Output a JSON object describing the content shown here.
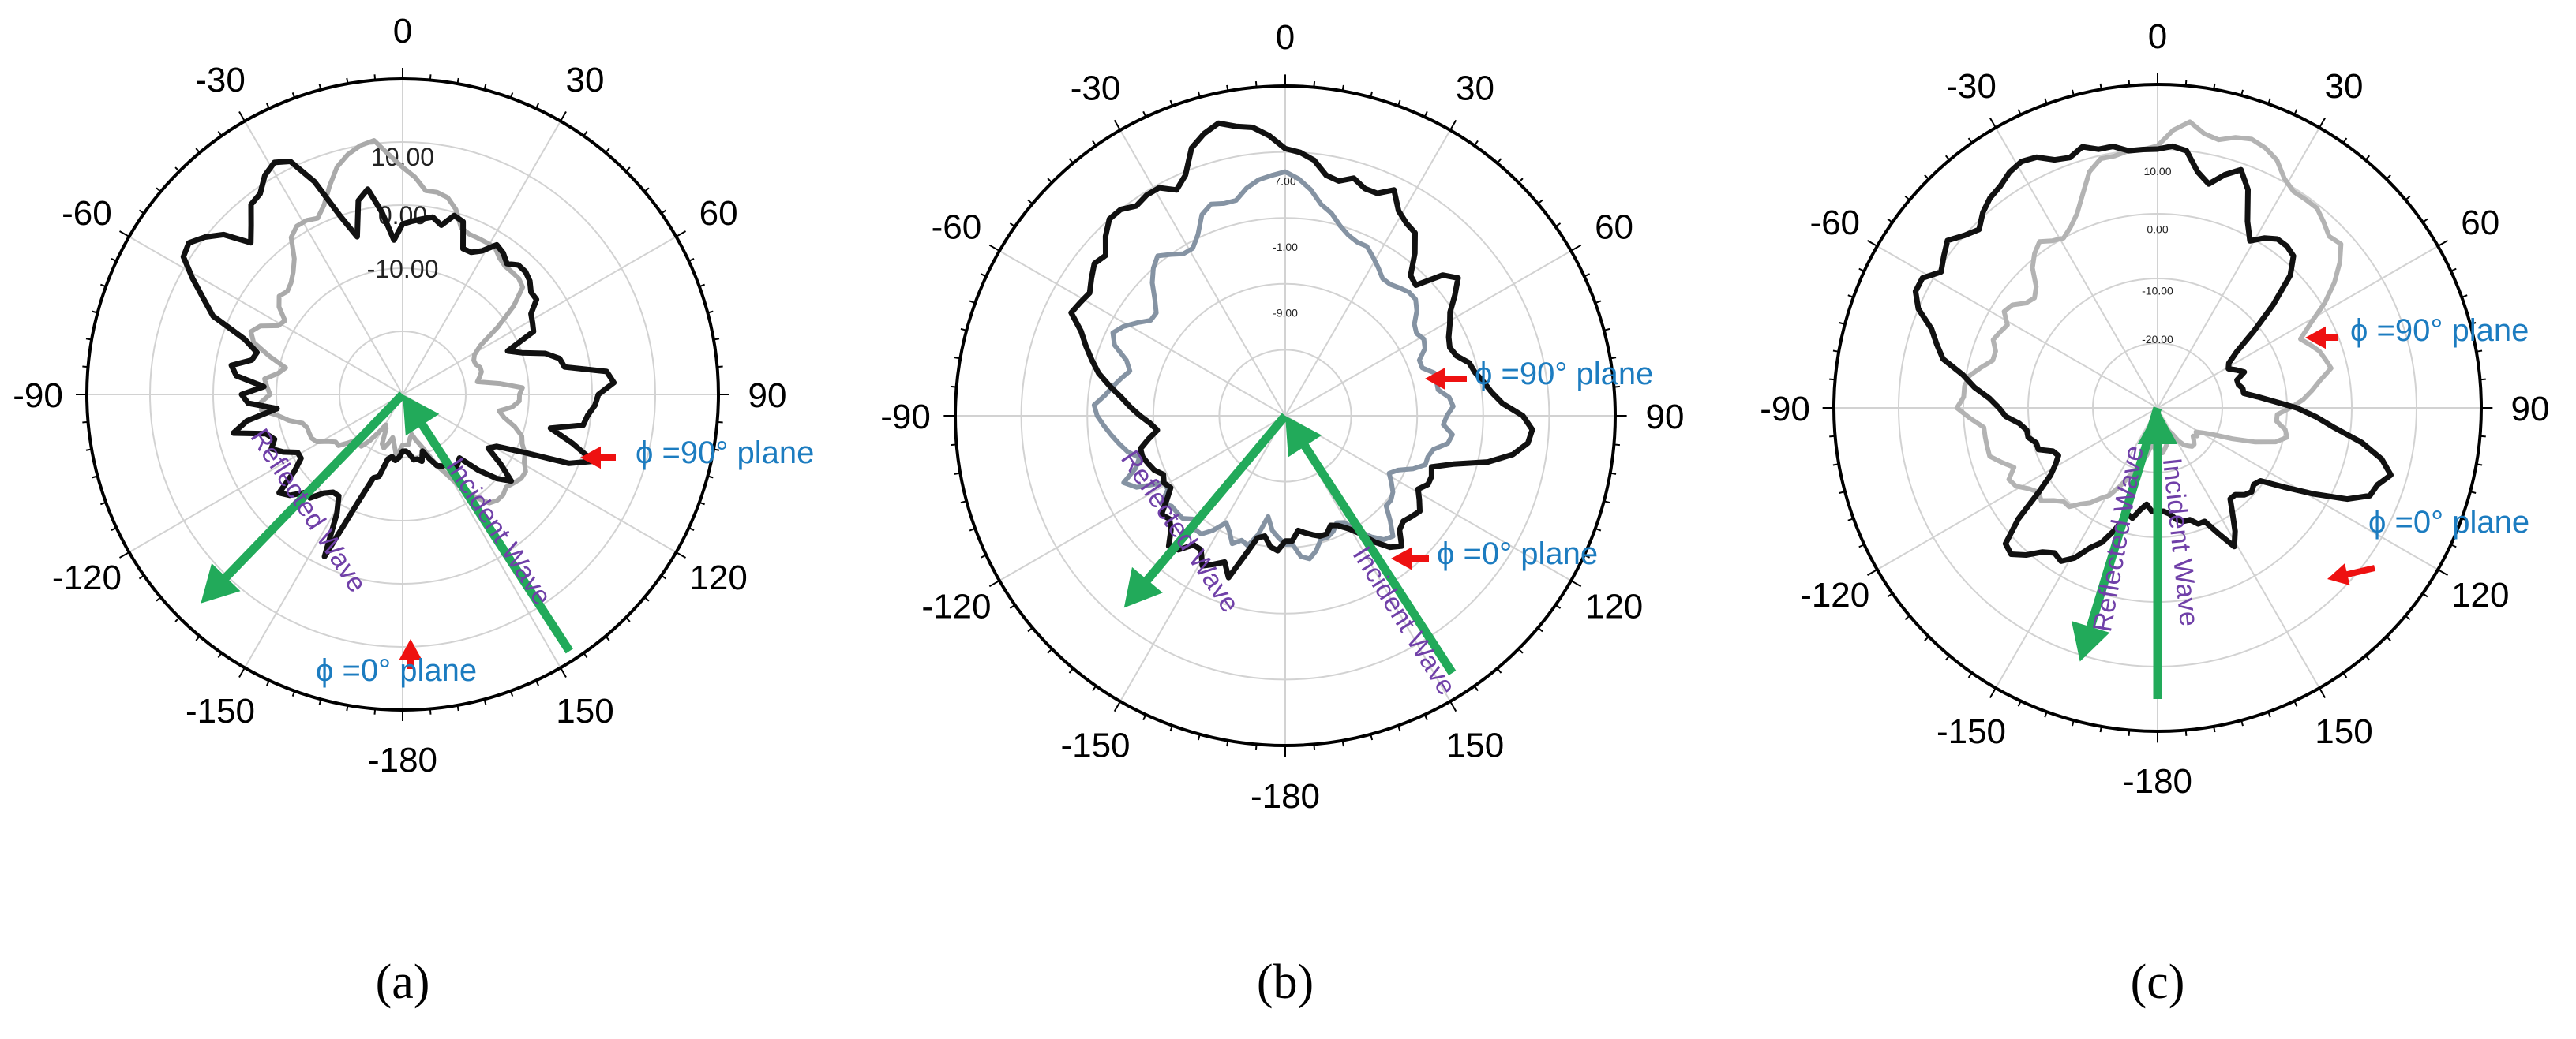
{
  "colors": {
    "phi90": "#111111",
    "phi0_a": "#aaaaaa",
    "phi0_b": "#8593a3",
    "phi0_c": "#b3b3b3",
    "arrow": "#22aa5a",
    "pointer": "#ee1111",
    "annotation": "#1c7cc0",
    "wave_label": "#7040a8",
    "grid": "#d2d2d2"
  },
  "chart_data": [
    {
      "type": "polar-line",
      "panel": "a",
      "caption": "(a)",
      "angle_ticks": [
        "0",
        "30",
        "60",
        "90",
        "120",
        "150",
        "-180",
        "-150",
        "-120",
        "-90",
        "-60",
        "-30"
      ],
      "radial_tick_labels": [
        "10.00",
        "0.00",
        "-10.00"
      ],
      "series": [
        {
          "label": "ϕ =90° plane",
          "style": "black",
          "r": [
            0.18,
            0.2,
            0.21,
            0.2,
            0.21,
            0.27,
            0.28,
            0.37,
            0.57,
            0.43,
            0.38,
            0.38,
            0.4,
            0.44,
            0.44,
            0.48,
            0.5,
            0.42,
            0.38,
            0.38,
            0.42,
            0.45,
            0.43,
            0.45,
            0.55,
            0.5,
            0.4,
            0.49,
            0.51,
            0.44,
            0.53,
            0.55,
            0.49,
            0.48,
            0.53,
            0.65,
            0.7,
            0.76,
            0.82,
            0.83,
            0.8,
            0.76,
            0.68,
            0.72,
            0.77,
            0.78,
            0.82,
            0.84,
            0.82,
            0.73,
            0.6,
            0.52,
            0.63,
            0.66,
            0.58,
            0.49,
            0.54,
            0.55,
            0.56,
            0.57,
            0.55,
            0.59,
            0.58,
            0.5,
            0.5,
            0.52,
            0.56,
            0.55,
            0.53,
            0.55,
            0.55,
            0.54,
            0.52,
            0.52,
            0.48,
            0.47,
            0.46,
            0.36,
            0.4,
            0.47,
            0.51,
            0.52,
            0.65,
            0.67,
            0.62,
            0.61,
            0.59,
            0.58,
            0.48,
            0.56,
            0.64,
            0.57,
            0.42,
            0.34,
            0.32,
            0.38,
            0.44,
            0.4,
            0.34,
            0.27,
            0.28,
            0.29,
            0.26,
            0.26,
            0.25,
            0.22,
            0.19,
            0.22,
            0.21,
            0.21,
            0.19,
            0.18
          ]
        },
        {
          "label": "ϕ =0° plane",
          "style": "gray",
          "r": [
            0.16,
            0.18,
            0.19,
            0.16,
            0.14,
            0.16,
            0.18,
            0.17,
            0.12,
            0.11,
            0.14,
            0.18,
            0.21,
            0.21,
            0.2,
            0.23,
            0.26,
            0.26,
            0.28,
            0.31,
            0.32,
            0.32,
            0.32,
            0.33,
            0.37,
            0.4,
            0.45,
            0.45,
            0.42,
            0.43,
            0.44,
            0.4,
            0.38,
            0.44,
            0.5,
            0.52,
            0.5,
            0.45,
            0.44,
            0.48,
            0.5,
            0.49,
            0.5,
            0.52,
            0.55,
            0.61,
            0.63,
            0.63,
            0.62,
            0.65,
            0.7,
            0.75,
            0.78,
            0.8,
            0.81,
            0.76,
            0.72,
            0.69,
            0.65,
            0.65,
            0.64,
            0.61,
            0.56,
            0.55,
            0.55,
            0.55,
            0.55,
            0.53,
            0.52,
            0.52,
            0.52,
            0.51,
            0.45,
            0.37,
            0.29,
            0.26,
            0.25,
            0.25,
            0.26,
            0.26,
            0.25,
            0.24,
            0.31,
            0.38,
            0.37,
            0.37,
            0.35,
            0.31,
            0.33,
            0.37,
            0.4,
            0.41,
            0.43,
            0.44,
            0.46,
            0.46,
            0.45,
            0.44,
            0.45,
            0.45,
            0.44,
            0.4,
            0.35,
            0.29,
            0.25,
            0.2,
            0.17,
            0.15,
            0.13,
            0.14,
            0.16,
            0.16
          ]
        }
      ],
      "annotations": [
        {
          "text": "ϕ =90° plane",
          "points_to": "φ90 trace near 100°"
        },
        {
          "text": "ϕ =0° plane",
          "points_to": "φ0 trace near -178°"
        }
      ],
      "wave_arrows": [
        {
          "label": "Incident Wave",
          "from_angle": 147,
          "to": "center"
        },
        {
          "label": "Reflected Wave",
          "from": "center",
          "to_angle": -136
        }
      ]
    },
    {
      "type": "polar-line",
      "panel": "b",
      "caption": "(b)",
      "angle_ticks": [
        "0",
        "30",
        "60",
        "90",
        "120",
        "150",
        "-180",
        "-150",
        "-120",
        "-90",
        "-60",
        "-30"
      ],
      "radial_tick_labels": [
        "7.00",
        "-1.00",
        "-9.00"
      ],
      "series": [
        {
          "label": "ϕ =90° plane",
          "style": "black",
          "r": [
            0.38,
            0.41,
            0.4,
            0.37,
            0.38,
            0.44,
            0.52,
            0.48,
            0.5,
            0.52,
            0.48,
            0.48,
            0.52,
            0.53,
            0.49,
            0.47,
            0.48,
            0.44,
            0.41,
            0.42,
            0.41,
            0.43,
            0.44,
            0.45,
            0.45,
            0.42,
            0.39,
            0.41,
            0.44,
            0.47,
            0.5,
            0.54,
            0.58,
            0.61,
            0.64,
            0.67,
            0.72,
            0.71,
            0.7,
            0.72,
            0.74,
            0.73,
            0.77,
            0.8,
            0.8,
            0.78,
            0.79,
            0.79,
            0.76,
            0.79,
            0.86,
            0.89,
            0.91,
            0.89,
            0.88,
            0.85,
            0.81,
            0.8,
            0.78,
            0.74,
            0.73,
            0.75,
            0.73,
            0.73,
            0.76,
            0.71,
            0.69,
            0.68,
            0.63,
            0.57,
            0.56,
            0.64,
            0.67,
            0.63,
            0.59,
            0.57,
            0.55,
            0.54,
            0.55,
            0.58,
            0.59,
            0.61,
            0.63,
            0.66,
            0.72,
            0.75,
            0.74,
            0.7,
            0.63,
            0.53,
            0.47,
            0.48,
            0.48,
            0.46,
            0.48,
            0.5,
            0.49,
            0.48,
            0.49,
            0.53,
            0.51,
            0.47,
            0.42,
            0.39,
            0.37,
            0.36,
            0.38,
            0.38,
            0.37,
            0.36,
            0.35,
            0.38
          ]
        },
        {
          "label": "ϕ =0° plane",
          "style": "bluegray",
          "r": [
            0.39,
            0.37,
            0.35,
            0.31,
            0.37,
            0.41,
            0.4,
            0.42,
            0.39,
            0.37,
            0.41,
            0.44,
            0.44,
            0.42,
            0.44,
            0.44,
            0.44,
            0.46,
            0.42,
            0.42,
            0.5,
            0.53,
            0.48,
            0.46,
            0.49,
            0.51,
            0.53,
            0.55,
            0.57,
            0.58,
            0.55,
            0.53,
            0.51,
            0.49,
            0.51,
            0.56,
            0.58,
            0.56,
            0.53,
            0.5,
            0.5,
            0.53,
            0.57,
            0.6,
            0.62,
            0.6,
            0.58,
            0.58,
            0.61,
            0.66,
            0.68,
            0.67,
            0.67,
            0.7,
            0.72,
            0.73,
            0.74,
            0.72,
            0.69,
            0.65,
            0.63,
            0.6,
            0.58,
            0.57,
            0.57,
            0.55,
            0.53,
            0.51,
            0.51,
            0.52,
            0.53,
            0.53,
            0.51,
            0.48,
            0.47,
            0.48,
            0.47,
            0.44,
            0.44,
            0.47,
            0.47,
            0.47,
            0.5,
            0.51,
            0.49,
            0.48,
            0.51,
            0.5,
            0.46,
            0.45,
            0.45,
            0.42,
            0.38,
            0.36,
            0.38,
            0.4,
            0.41,
            0.41,
            0.45,
            0.49,
            0.48,
            0.45,
            0.41,
            0.37,
            0.36,
            0.38,
            0.39,
            0.39,
            0.42,
            0.44,
            0.43,
            0.39
          ]
        }
      ],
      "annotations": [
        {
          "text": "ϕ =90° plane",
          "points_to": "φ90 trace near 80°"
        },
        {
          "text": "ϕ =0° plane",
          "points_to": "φ0 trace near 118°"
        }
      ],
      "wave_arrows": [
        {
          "label": "Incident Wave",
          "from_angle": 147,
          "to": "center"
        },
        {
          "label": "Reflected Wave",
          "from": "center",
          "to_angle": -140
        }
      ]
    },
    {
      "type": "polar-line",
      "panel": "c",
      "caption": "(c)",
      "angle_ticks": [
        "0",
        "30",
        "60",
        "90",
        "120",
        "150",
        "-180",
        "-150",
        "-120",
        "-90",
        "-60",
        "-30"
      ],
      "radial_tick_labels": [
        "10.00",
        "0.00",
        "-10.00",
        "-20.00"
      ],
      "series": [
        {
          "label": "ϕ =90° plane",
          "style": "black",
          "r": [
            0.32,
            0.32,
            0.3,
            0.32,
            0.35,
            0.34,
            0.4,
            0.45,
            0.48,
            0.53,
            0.56,
            0.55,
            0.57,
            0.61,
            0.64,
            0.63,
            0.55,
            0.45,
            0.39,
            0.36,
            0.34,
            0.35,
            0.39,
            0.39,
            0.41,
            0.41,
            0.43,
            0.47,
            0.49,
            0.52,
            0.57,
            0.61,
            0.68,
            0.71,
            0.74,
            0.8,
            0.83,
            0.83,
            0.79,
            0.81,
            0.83,
            0.8,
            0.78,
            0.81,
            0.83,
            0.84,
            0.86,
            0.87,
            0.86,
            0.83,
            0.82,
            0.84,
            0.82,
            0.82,
            0.8,
            0.8,
            0.8,
            0.81,
            0.8,
            0.74,
            0.71,
            0.75,
            0.78,
            0.73,
            0.64,
            0.59,
            0.62,
            0.64,
            0.64,
            0.63,
            0.58,
            0.48,
            0.38,
            0.3,
            0.26,
            0.25,
            0.27,
            0.29,
            0.26,
            0.26,
            0.27,
            0.27,
            0.31,
            0.36,
            0.43,
            0.49,
            0.55,
            0.64,
            0.71,
            0.75,
            0.72,
            0.71,
            0.65,
            0.55,
            0.46,
            0.39,
            0.38,
            0.39,
            0.38,
            0.36,
            0.36,
            0.4,
            0.45,
            0.49,
            0.43,
            0.38,
            0.38,
            0.36,
            0.36,
            0.35,
            0.33,
            0.32
          ]
        },
        {
          "label": "ϕ =0° plane",
          "style": "gray",
          "r": [
            0.13,
            0.13,
            0.11,
            0.12,
            0.15,
            0.17,
            0.2,
            0.23,
            0.27,
            0.31,
            0.33,
            0.36,
            0.38,
            0.41,
            0.41,
            0.43,
            0.46,
            0.45,
            0.47,
            0.5,
            0.51,
            0.48,
            0.51,
            0.54,
            0.54,
            0.54,
            0.54,
            0.58,
            0.62,
            0.6,
            0.6,
            0.59,
            0.56,
            0.53,
            0.53,
            0.55,
            0.54,
            0.53,
            0.56,
            0.55,
            0.52,
            0.51,
            0.53,
            0.58,
            0.61,
            0.63,
            0.61,
            0.6,
            0.62,
            0.65,
            0.7,
            0.76,
            0.79,
            0.79,
            0.8,
            0.8,
            0.81,
            0.86,
            0.89,
            0.86,
            0.85,
            0.87,
            0.88,
            0.87,
            0.85,
            0.81,
            0.79,
            0.79,
            0.79,
            0.77,
            0.75,
            0.76,
            0.72,
            0.67,
            0.61,
            0.54,
            0.49,
            0.51,
            0.53,
            0.54,
            0.55,
            0.51,
            0.48,
            0.45,
            0.41,
            0.37,
            0.37,
            0.4,
            0.41,
            0.38,
            0.32,
            0.25,
            0.19,
            0.16,
            0.14,
            0.15,
            0.14,
            0.15,
            0.16,
            0.16,
            0.15,
            0.14,
            0.12,
            0.09,
            0.08,
            0.09,
            0.11,
            0.11,
            0.12,
            0.13,
            0.14,
            0.13
          ]
        }
      ],
      "annotations": [
        {
          "text": "ϕ =90° plane",
          "points_to": "φ90 trace near 60°"
        },
        {
          "text": "ϕ =0° plane",
          "points_to": "φ0 trace near 120°"
        }
      ],
      "wave_arrows": [
        {
          "label": "Incident Wave",
          "from_angle": 180,
          "to": "center"
        },
        {
          "label": "Reflected Wave",
          "from": "center",
          "to_angle": -163
        }
      ]
    }
  ]
}
